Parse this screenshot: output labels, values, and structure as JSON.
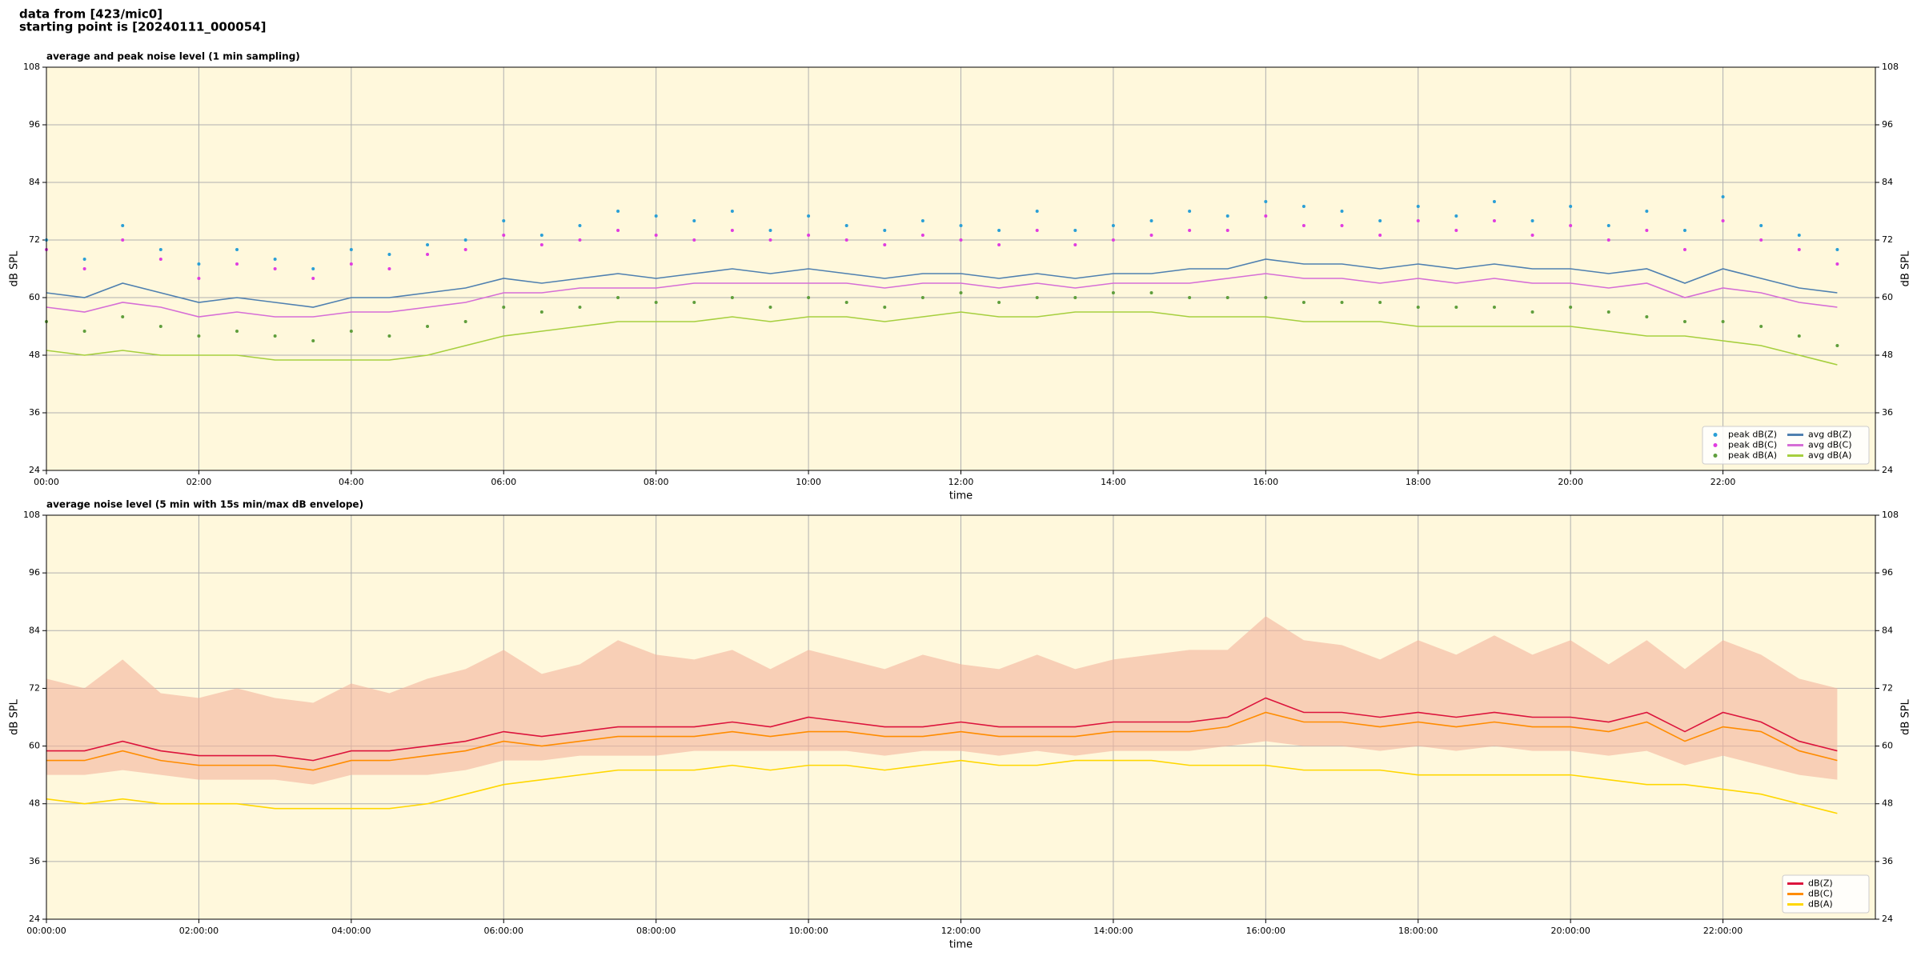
{
  "header": {
    "source": "data from [423/mic0]",
    "start": "starting point is [20240111_000054]"
  },
  "chart_data": [
    {
      "type": "line",
      "title": "average and peak noise level (1 min sampling)",
      "x_label": "time",
      "y_label": "dB SPL",
      "xlim": [
        0,
        24
      ],
      "ylim": [
        24,
        108
      ],
      "yticks": [
        24,
        36,
        48,
        60,
        72,
        84,
        96,
        108
      ],
      "grid": true,
      "background": "#fff8dc",
      "legend": "lower right",
      "xticks": [
        {
          "value": 0,
          "label": "00:00"
        },
        {
          "value": 2,
          "label": "02:00"
        },
        {
          "value": 4,
          "label": "04:00"
        },
        {
          "value": 6,
          "label": "06:00"
        },
        {
          "value": 8,
          "label": "08:00"
        },
        {
          "value": 10,
          "label": "10:00"
        },
        {
          "value": 12,
          "label": "12:00"
        },
        {
          "value": 14,
          "label": "14:00"
        },
        {
          "value": 16,
          "label": "16:00"
        },
        {
          "value": 18,
          "label": "18:00"
        },
        {
          "value": 20,
          "label": "20:00"
        },
        {
          "value": 22,
          "label": "22:00"
        }
      ],
      "x": [
        0,
        0.5,
        1,
        1.5,
        2,
        2.5,
        3,
        3.5,
        4,
        4.5,
        5,
        5.5,
        6,
        6.5,
        7,
        7.5,
        8,
        8.5,
        9,
        9.5,
        10,
        10.5,
        11,
        11.5,
        12,
        12.5,
        13,
        13.5,
        14,
        14.5,
        15,
        15.5,
        16,
        16.5,
        17,
        17.5,
        18,
        18.5,
        19,
        19.5,
        20,
        20.5,
        21,
        21.5,
        22,
        22.5,
        23,
        23.5
      ],
      "series": [
        {
          "name": "peak dB(Z)",
          "style": "dots",
          "color": "#2a9fd6",
          "values": [
            72,
            68,
            75,
            70,
            67,
            70,
            68,
            66,
            70,
            69,
            71,
            72,
            76,
            73,
            75,
            78,
            77,
            76,
            78,
            74,
            77,
            75,
            74,
            76,
            75,
            74,
            78,
            74,
            75,
            76,
            78,
            77,
            80,
            79,
            78,
            76,
            79,
            77,
            80,
            76,
            79,
            75,
            78,
            74,
            81,
            75,
            73,
            70
          ]
        },
        {
          "name": "peak dB(C)",
          "style": "dots",
          "color": "#e03ce0",
          "values": [
            70,
            66,
            72,
            68,
            64,
            67,
            66,
            64,
            67,
            66,
            69,
            70,
            73,
            71,
            72,
            74,
            73,
            72,
            74,
            72,
            73,
            72,
            71,
            73,
            72,
            71,
            74,
            71,
            72,
            73,
            74,
            74,
            77,
            75,
            75,
            73,
            76,
            74,
            76,
            73,
            75,
            72,
            74,
            70,
            76,
            72,
            70,
            67
          ]
        },
        {
          "name": "peak dB(A)",
          "style": "dots",
          "color": "#5f9e3c",
          "values": [
            55,
            53,
            56,
            54,
            52,
            53,
            52,
            51,
            53,
            52,
            54,
            55,
            58,
            57,
            58,
            60,
            59,
            59,
            60,
            58,
            60,
            59,
            58,
            60,
            61,
            59,
            60,
            60,
            61,
            61,
            60,
            60,
            60,
            59,
            59,
            59,
            58,
            58,
            58,
            57,
            58,
            57,
            56,
            55,
            55,
            54,
            52,
            50
          ]
        },
        {
          "name": "avg dB(Z)",
          "style": "line",
          "color": "#4f80b0",
          "values": [
            61,
            60,
            63,
            61,
            59,
            60,
            59,
            58,
            60,
            60,
            61,
            62,
            64,
            63,
            64,
            65,
            64,
            65,
            66,
            65,
            66,
            65,
            64,
            65,
            65,
            64,
            65,
            64,
            65,
            65,
            66,
            66,
            68,
            67,
            67,
            66,
            67,
            66,
            67,
            66,
            66,
            65,
            66,
            63,
            66,
            64,
            62,
            61
          ]
        },
        {
          "name": "avg dB(C)",
          "style": "line",
          "color": "#d66ed6",
          "values": [
            58,
            57,
            59,
            58,
            56,
            57,
            56,
            56,
            57,
            57,
            58,
            59,
            61,
            61,
            62,
            62,
            62,
            63,
            63,
            63,
            63,
            63,
            62,
            63,
            63,
            62,
            63,
            62,
            63,
            63,
            63,
            64,
            65,
            64,
            64,
            63,
            64,
            63,
            64,
            63,
            63,
            62,
            63,
            60,
            62,
            61,
            59,
            58
          ]
        },
        {
          "name": "avg dB(A)",
          "style": "line",
          "color": "#a6cf3e",
          "values": [
            49,
            48,
            49,
            48,
            48,
            48,
            47,
            47,
            47,
            47,
            48,
            50,
            52,
            53,
            54,
            55,
            55,
            55,
            56,
            55,
            56,
            56,
            55,
            56,
            57,
            56,
            56,
            57,
            57,
            57,
            56,
            56,
            56,
            55,
            55,
            55,
            54,
            54,
            54,
            54,
            54,
            53,
            52,
            52,
            51,
            50,
            48,
            46
          ]
        }
      ]
    },
    {
      "type": "line",
      "title": "average noise level (5 min with 15s min/max dB envelope)",
      "x_label": "time",
      "y_label": "dB SPL",
      "xlim": [
        0,
        24
      ],
      "ylim": [
        24,
        108
      ],
      "yticks": [
        24,
        36,
        48,
        60,
        72,
        84,
        96,
        108
      ],
      "grid": true,
      "background": "#fff8dc",
      "legend": "lower right",
      "xticks": [
        {
          "value": 0,
          "label": "00:00:00"
        },
        {
          "value": 2,
          "label": "02:00:00"
        },
        {
          "value": 4,
          "label": "04:00:00"
        },
        {
          "value": 6,
          "label": "06:00:00"
        },
        {
          "value": 8,
          "label": "08:00:00"
        },
        {
          "value": 10,
          "label": "10:00:00"
        },
        {
          "value": 12,
          "label": "12:00:00"
        },
        {
          "value": 14,
          "label": "14:00:00"
        },
        {
          "value": 16,
          "label": "16:00:00"
        },
        {
          "value": 18,
          "label": "18:00:00"
        },
        {
          "value": 20,
          "label": "20:00:00"
        },
        {
          "value": 22,
          "label": "22:00:00"
        }
      ],
      "x": [
        0,
        0.5,
        1,
        1.5,
        2,
        2.5,
        3,
        3.5,
        4,
        4.5,
        5,
        5.5,
        6,
        6.5,
        7,
        7.5,
        8,
        8.5,
        9,
        9.5,
        10,
        10.5,
        11,
        11.5,
        12,
        12.5,
        13,
        13.5,
        14,
        14.5,
        15,
        15.5,
        16,
        16.5,
        17,
        17.5,
        18,
        18.5,
        19,
        19.5,
        20,
        20.5,
        21,
        21.5,
        22,
        22.5,
        23,
        23.5
      ],
      "envelope": {
        "color": "#f4b49c",
        "low": [
          54,
          54,
          55,
          54,
          53,
          53,
          53,
          52,
          54,
          54,
          54,
          55,
          57,
          57,
          58,
          58,
          58,
          59,
          59,
          59,
          59,
          59,
          58,
          59,
          59,
          58,
          59,
          58,
          59,
          59,
          59,
          60,
          61,
          60,
          60,
          59,
          60,
          59,
          60,
          59,
          59,
          58,
          59,
          56,
          58,
          56,
          54,
          53
        ],
        "high": [
          74,
          72,
          78,
          71,
          70,
          72,
          70,
          69,
          73,
          71,
          74,
          76,
          80,
          75,
          77,
          82,
          79,
          78,
          80,
          76,
          80,
          78,
          76,
          79,
          77,
          76,
          79,
          76,
          78,
          79,
          80,
          80,
          87,
          82,
          81,
          78,
          82,
          79,
          83,
          79,
          82,
          77,
          82,
          76,
          82,
          79,
          74,
          72
        ]
      },
      "series": [
        {
          "name": "dB(Z)",
          "style": "line",
          "color": "#dc143c",
          "values": [
            59,
            59,
            61,
            59,
            58,
            58,
            58,
            57,
            59,
            59,
            60,
            61,
            63,
            62,
            63,
            64,
            64,
            64,
            65,
            64,
            66,
            65,
            64,
            64,
            65,
            64,
            64,
            64,
            65,
            65,
            65,
            66,
            70,
            67,
            67,
            66,
            67,
            66,
            67,
            66,
            66,
            65,
            67,
            63,
            67,
            65,
            61,
            59
          ]
        },
        {
          "name": "dB(C)",
          "style": "line",
          "color": "#ff8c00",
          "values": [
            57,
            57,
            59,
            57,
            56,
            56,
            56,
            55,
            57,
            57,
            58,
            59,
            61,
            60,
            61,
            62,
            62,
            62,
            63,
            62,
            63,
            63,
            62,
            62,
            63,
            62,
            62,
            62,
            63,
            63,
            63,
            64,
            67,
            65,
            65,
            64,
            65,
            64,
            65,
            64,
            64,
            63,
            65,
            61,
            64,
            63,
            59,
            57
          ]
        },
        {
          "name": "dB(A)",
          "style": "line",
          "color": "#ffd700",
          "values": [
            49,
            48,
            49,
            48,
            48,
            48,
            47,
            47,
            47,
            47,
            48,
            50,
            52,
            53,
            54,
            55,
            55,
            55,
            56,
            55,
            56,
            56,
            55,
            56,
            57,
            56,
            56,
            57,
            57,
            57,
            56,
            56,
            56,
            55,
            55,
            55,
            54,
            54,
            54,
            54,
            54,
            53,
            52,
            52,
            51,
            50,
            48,
            46
          ]
        }
      ]
    }
  ]
}
